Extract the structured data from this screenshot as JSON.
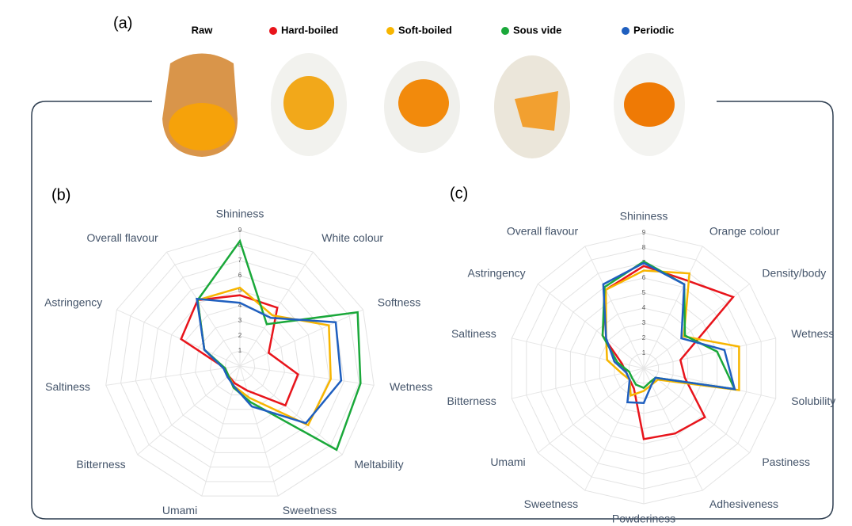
{
  "panel_a": {
    "label": "(a)",
    "raw": "Raw"
  },
  "chart_data": [
    {
      "type": "radar",
      "label": "(b)",
      "categories": [
        "Shininess",
        "White colour",
        "Softness",
        "Wetness",
        "Meltability",
        "Sweetness",
        "Umami",
        "Bitterness",
        "Saltiness",
        "Astringency",
        "Overall flavour"
      ],
      "ylim": [
        0,
        9
      ],
      "yticks": [
        1,
        2,
        3,
        4,
        5,
        6,
        7,
        8,
        9
      ],
      "grid": true,
      "series": [
        {
          "name": "Hard-boiled",
          "color": "#e8141b",
          "values": [
            4.7,
            4.6,
            2.1,
            3.9,
            4.0,
            1.7,
            1.2,
            1.0,
            1.0,
            4.3,
            5.2
          ]
        },
        {
          "name": "Soft-boiled",
          "color": "#f7b500",
          "values": [
            5.2,
            4.0,
            6.5,
            6.1,
            6.0,
            2.2,
            1.4,
            1.0,
            1.1,
            2.6,
            5.2
          ]
        },
        {
          "name": "Sous vide",
          "color": "#1aa83a",
          "values": [
            8.3,
            3.3,
            8.6,
            8.1,
            8.5,
            2.5,
            1.5,
            1.0,
            1.0,
            2.6,
            5.2
          ]
        },
        {
          "name": "Periodic",
          "color": "#1f5fbf",
          "values": [
            4.2,
            3.8,
            7.0,
            6.8,
            5.8,
            2.8,
            1.4,
            1.1,
            1.1,
            2.6,
            5.3
          ]
        }
      ]
    },
    {
      "type": "radar",
      "label": "(c)",
      "categories": [
        "Shininess",
        "Orange colour",
        "Density/body",
        "Wetness",
        "Solubility",
        "Pastiness",
        "Adhesiveness",
        "Powderiness",
        "Sweetness",
        "Umami",
        "Bitterness",
        "Saltiness",
        "Astringency",
        "Overall flavour"
      ],
      "ylim": [
        0,
        9
      ],
      "yticks": [
        1,
        2,
        3,
        4,
        5,
        6,
        7,
        8,
        9
      ],
      "grid": true,
      "series": [
        {
          "color": "#e8141b",
          "values": [
            6.8,
            6.5,
            7.6,
            2.5,
            2.8,
            5.2,
            4.8,
            4.7,
            1.5,
            1.2,
            1.2,
            1.5,
            3.5,
            5.8
          ]
        },
        {
          "color": "#f7b500",
          "values": [
            6.5,
            7.0,
            3.4,
            6.5,
            6.5,
            1.2,
            1.2,
            1.5,
            2.0,
            1.2,
            1.5,
            2.5,
            3.2,
            5.8
          ]
        },
        {
          "color": "#1aa83a",
          "values": [
            7.1,
            6.2,
            3.5,
            5.0,
            6.2,
            1.0,
            1.0,
            1.3,
            1.2,
            1.0,
            1.0,
            1.8,
            3.5,
            6.0
          ]
        },
        {
          "color": "#1f5fbf",
          "values": [
            7.0,
            6.2,
            3.2,
            5.5,
            6.2,
            1.0,
            1.2,
            2.3,
            2.5,
            1.2,
            1.2,
            2.0,
            3.2,
            6.2
          ]
        }
      ]
    }
  ]
}
